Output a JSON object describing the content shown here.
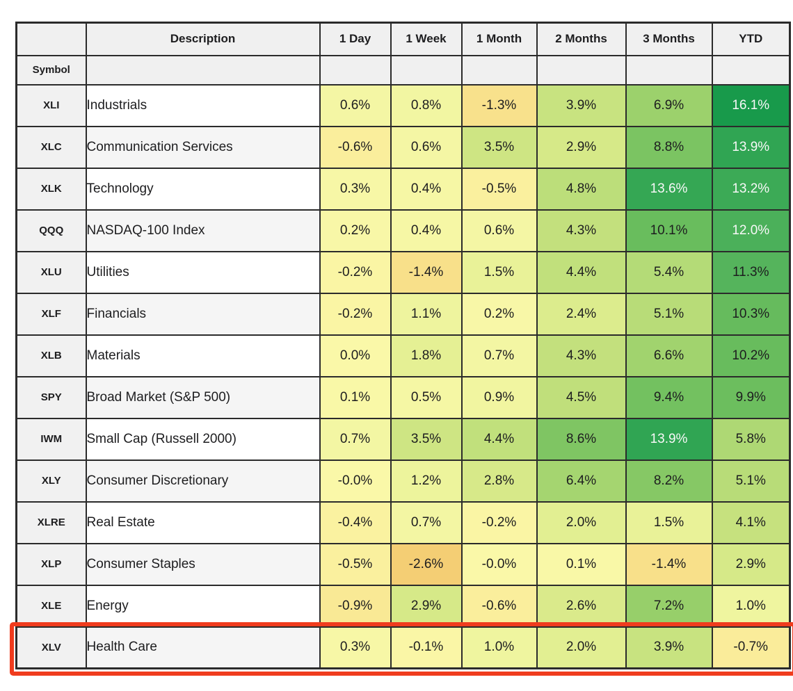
{
  "chart_data": {
    "type": "heatmap",
    "title": "",
    "corner_label": "",
    "description_header": "Description",
    "symbol_header": "Symbol",
    "columns": [
      "1 Day",
      "1 Week",
      "1 Month",
      "2 Months",
      "3 Months",
      "YTD"
    ],
    "rows": [
      {
        "symbol": "XLI",
        "description": "Industrials",
        "values": [
          "0.6%",
          "0.8%",
          "-1.3%",
          "3.9%",
          "6.9%",
          "16.1%"
        ]
      },
      {
        "symbol": "XLC",
        "description": "Communication Services",
        "values": [
          "-0.6%",
          "0.6%",
          "3.5%",
          "2.9%",
          "8.8%",
          "13.9%"
        ]
      },
      {
        "symbol": "XLK",
        "description": "Technology",
        "values": [
          "0.3%",
          "0.4%",
          "-0.5%",
          "4.8%",
          "13.6%",
          "13.2%"
        ]
      },
      {
        "symbol": "QQQ",
        "description": "NASDAQ-100 Index",
        "values": [
          "0.2%",
          "0.4%",
          "0.6%",
          "4.3%",
          "10.1%",
          "12.0%"
        ]
      },
      {
        "symbol": "XLU",
        "description": "Utilities",
        "values": [
          "-0.2%",
          "-1.4%",
          "1.5%",
          "4.4%",
          "5.4%",
          "11.3%"
        ]
      },
      {
        "symbol": "XLF",
        "description": "Financials",
        "values": [
          "-0.2%",
          "1.1%",
          "0.2%",
          "2.4%",
          "5.1%",
          "10.3%"
        ]
      },
      {
        "symbol": "XLB",
        "description": "Materials",
        "values": [
          "0.0%",
          "1.8%",
          "0.7%",
          "4.3%",
          "6.6%",
          "10.2%"
        ]
      },
      {
        "symbol": "SPY",
        "description": "Broad Market (S&P 500)",
        "values": [
          "0.1%",
          "0.5%",
          "0.9%",
          "4.5%",
          "9.4%",
          "9.9%"
        ]
      },
      {
        "symbol": "IWM",
        "description": "Small Cap (Russell 2000)",
        "values": [
          "0.7%",
          "3.5%",
          "4.4%",
          "8.6%",
          "13.9%",
          "5.8%"
        ]
      },
      {
        "symbol": "XLY",
        "description": "Consumer Discretionary",
        "values": [
          "-0.0%",
          "1.2%",
          "2.8%",
          "6.4%",
          "8.2%",
          "5.1%"
        ]
      },
      {
        "symbol": "XLRE",
        "description": "Real Estate",
        "values": [
          "-0.4%",
          "0.7%",
          "-0.2%",
          "2.0%",
          "1.5%",
          "4.1%"
        ]
      },
      {
        "symbol": "XLP",
        "description": "Consumer Staples",
        "values": [
          "-0.5%",
          "-2.6%",
          "-0.0%",
          "0.1%",
          "-1.4%",
          "2.9%"
        ]
      },
      {
        "symbol": "XLE",
        "description": "Energy",
        "values": [
          "-0.9%",
          "2.9%",
          "-0.6%",
          "2.6%",
          "7.2%",
          "1.0%"
        ]
      },
      {
        "symbol": "XLV",
        "description": "Health Care",
        "values": [
          "0.3%",
          "-0.1%",
          "1.0%",
          "2.0%",
          "3.9%",
          "-0.7%"
        ]
      }
    ],
    "highlighted_row": "XLV",
    "value_range": [
      -2.6,
      16.1
    ]
  },
  "style": {
    "heat_stops": [
      [
        -2.6,
        "#F4CE74"
      ],
      [
        -1.3,
        "#F8E18C"
      ],
      [
        -0.5,
        "#FAF09E"
      ],
      [
        0.0,
        "#FAF8A8"
      ],
      [
        0.7,
        "#F3F6A3"
      ],
      [
        1.5,
        "#E9F298"
      ],
      [
        2.5,
        "#DBEB8C"
      ],
      [
        3.5,
        "#CEE583"
      ],
      [
        4.5,
        "#C0DF7B"
      ],
      [
        5.5,
        "#B3DA76"
      ],
      [
        6.5,
        "#A3D46F"
      ],
      [
        7.5,
        "#92CD68"
      ],
      [
        8.8,
        "#7BC462"
      ],
      [
        10.2,
        "#68BC5D"
      ],
      [
        11.3,
        "#55B45C"
      ],
      [
        12.0,
        "#4BB05A"
      ],
      [
        13.2,
        "#3CAA56"
      ],
      [
        14.0,
        "#2EA452"
      ],
      [
        16.1,
        "#189A4B"
      ]
    ],
    "white_text_min": 12.0,
    "grid_color": "#2B2B2B",
    "header_bg": "#F0F0F0",
    "symbol_col_bg": "#F1F1F1",
    "row_alt_bg": "#F5F5F5",
    "dark_text": "#1D1D1F",
    "light_text": "#F8F8F8",
    "highlight_color": "#F03C1E"
  }
}
